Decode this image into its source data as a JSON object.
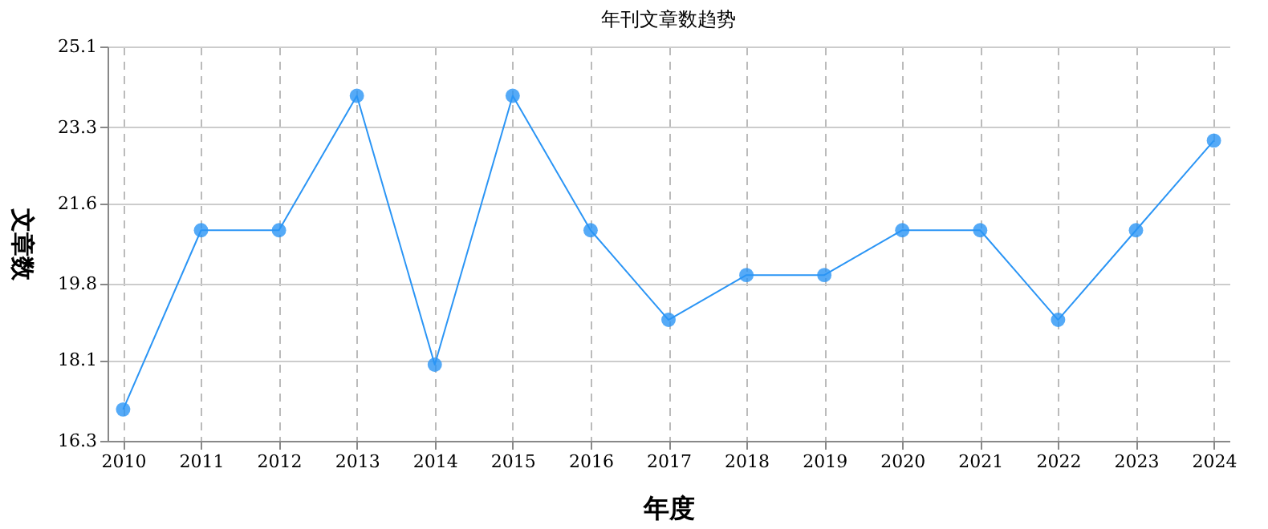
{
  "chart_data": {
    "type": "line",
    "title": "年刊文章数趋势",
    "xlabel": "年度",
    "ylabel": "文章数",
    "categories": [
      "2010",
      "2011",
      "2012",
      "2013",
      "2014",
      "2015",
      "2016",
      "2017",
      "2018",
      "2019",
      "2020",
      "2021",
      "2022",
      "2023",
      "2024"
    ],
    "series": [
      {
        "color": "#2b95f5",
        "values": [
          17,
          21,
          21,
          24,
          18,
          24,
          21,
          19,
          20,
          20,
          21,
          21,
          19,
          21,
          23
        ]
      }
    ],
    "ylim": [
      16.3,
      25.1
    ],
    "yticks": [
      16.3,
      18.1,
      19.8,
      21.6,
      23.3,
      25.1
    ],
    "grid": true,
    "marker": "circle",
    "line_style": "solid"
  }
}
